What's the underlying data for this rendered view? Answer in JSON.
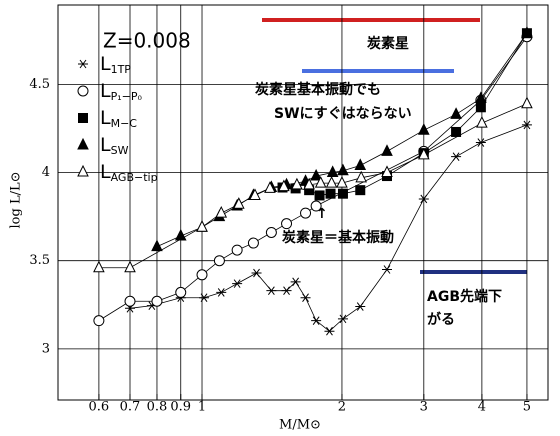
{
  "chart_data": {
    "type": "line",
    "log_x": true,
    "grid": true,
    "x_label": "M/M⊙",
    "y_label": "log L/L⊙",
    "note": "Z=0.008",
    "xlim": [
      0.49,
      5.55
    ],
    "ylim": [
      2.71,
      4.95
    ],
    "xticks": [
      0.6,
      0.7,
      0.8,
      0.9,
      1,
      2,
      3,
      4,
      5
    ],
    "yticks": [
      3,
      3.5,
      4,
      4.5
    ],
    "series": [
      {
        "name": "L",
        "subscript": "1TP",
        "marker": "asterisk",
        "color": "#000000",
        "x": [
          0.7,
          0.78,
          0.9,
          1.01,
          1.1,
          1.19,
          1.31,
          1.41,
          1.52,
          1.59,
          1.67,
          1.76,
          1.88,
          2.01,
          2.19,
          2.5,
          3.0,
          3.52,
          3.98,
          5.0
        ],
        "values": [
          3.23,
          3.245,
          3.29,
          3.29,
          3.32,
          3.37,
          3.43,
          3.33,
          3.33,
          3.38,
          3.29,
          3.16,
          3.1,
          3.17,
          3.24,
          3.45,
          3.85,
          4.09,
          4.17,
          4.27
        ]
      },
      {
        "name": "L",
        "subscript": "P₁−P₀",
        "marker": "circle",
        "color": "#000000",
        "x": [
          0.6,
          0.7,
          0.8,
          0.9,
          1.0,
          1.09,
          1.19,
          1.29,
          1.41,
          1.52,
          1.67,
          1.76,
          3.0,
          3.98,
          5.0
        ],
        "values": [
          3.16,
          3.27,
          3.27,
          3.32,
          3.42,
          3.5,
          3.56,
          3.6,
          3.66,
          3.71,
          3.77,
          3.81,
          4.12,
          4.41,
          4.77
        ]
      },
      {
        "name": "L",
        "subscript": "M−C",
        "marker": "square",
        "color": "#000000",
        "x": [
          1.49,
          1.59,
          1.7,
          1.79,
          1.89,
          2.01,
          2.19,
          2.5,
          3.0,
          3.52,
          3.98,
          5.0
        ],
        "values": [
          3.915,
          3.91,
          3.9,
          3.87,
          3.88,
          3.88,
          3.9,
          3.98,
          4.11,
          4.23,
          4.37,
          4.79
        ]
      },
      {
        "name": "L",
        "subscript": "SW",
        "marker": "triangle",
        "color": "#000000",
        "x": [
          0.8,
          0.9,
          1.0,
          1.09,
          1.19,
          1.29,
          1.41,
          1.52,
          1.67,
          1.76,
          1.91,
          2.01,
          2.19,
          2.5,
          3.0,
          3.52,
          3.98,
          5.0
        ],
        "values": [
          3.58,
          3.64,
          3.69,
          3.75,
          3.81,
          3.87,
          3.915,
          3.93,
          3.95,
          3.98,
          4.0,
          4.01,
          4.04,
          4.12,
          4.24,
          4.33,
          4.42,
          4.79
        ]
      },
      {
        "name": "L",
        "subscript": "AGB−tip",
        "marker": "triangle-open",
        "color": "#000000",
        "x": [
          0.6,
          0.7,
          1.0,
          1.1,
          1.2,
          1.3,
          1.4,
          1.5,
          1.6,
          1.7,
          1.8,
          1.9,
          2.0,
          2.2,
          2.5,
          3.0,
          4.0,
          5.0
        ],
        "values": [
          3.46,
          3.46,
          3.69,
          3.77,
          3.82,
          3.87,
          3.91,
          3.92,
          3.93,
          3.93,
          3.94,
          3.94,
          3.94,
          3.97,
          4.0,
          4.1,
          4.28,
          4.39
        ]
      }
    ],
    "annotations": [
      "炭素星",
      "炭素星基本振動でも",
      "SWにすぐはならない",
      "炭素星＝基本振動",
      "↑",
      "AGB先端下",
      "がる"
    ]
  }
}
